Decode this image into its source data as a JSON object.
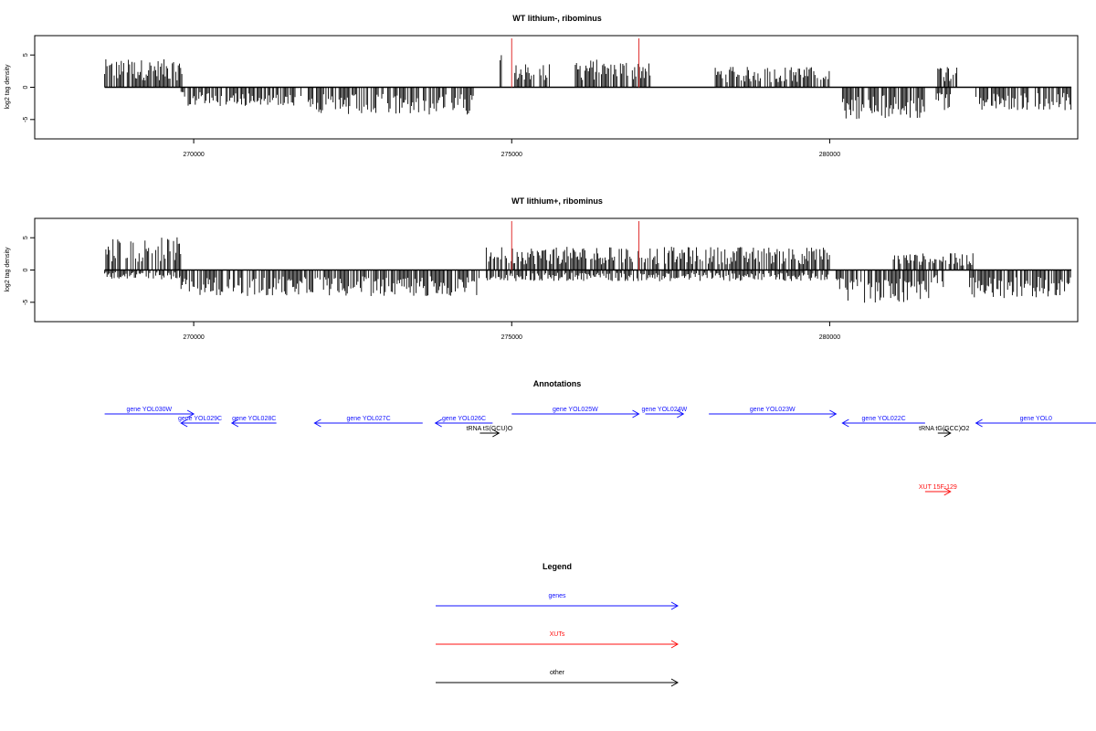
{
  "chart_data": [
    {
      "type": "bar",
      "title": "WT lithium-, ribominus",
      "xlabel": "",
      "ylabel": "log2 tag density",
      "xlim": [
        267500,
        283900
      ],
      "ylim": [
        -8,
        8
      ],
      "x_ticks": [
        270000,
        275000,
        280000
      ],
      "y_ticks": [
        -5,
        0,
        5
      ],
      "reference_lines_x": [
        275000,
        277000
      ],
      "reference_line_color": "#e03030",
      "bar_color": "#000000",
      "positive_bars": [
        {
          "x_range": [
            268600,
            269820
          ],
          "mean": 3.0
        },
        {
          "x_range": [
            274800,
            274850
          ],
          "mean": 4.5
        },
        {
          "x_range": [
            275050,
            275600
          ],
          "mean": 2.5
        },
        {
          "x_range": [
            276000,
            277200
          ],
          "mean": 3.0
        },
        {
          "x_range": [
            278200,
            280000
          ],
          "mean": 2.2
        },
        {
          "x_range": [
            281700,
            282000
          ],
          "mean": 2.5
        }
      ],
      "negative_bars": [
        {
          "x_range": [
            269800,
            271700
          ],
          "mean": -2.0
        },
        {
          "x_range": [
            271800,
            274400
          ],
          "mean": -3.0
        },
        {
          "x_range": [
            280200,
            281500
          ],
          "mean": -3.5
        },
        {
          "x_range": [
            281600,
            281900
          ],
          "mean": -2.5
        },
        {
          "x_range": [
            282300,
            283800
          ],
          "mean": -2.5
        }
      ]
    },
    {
      "type": "bar",
      "title": "WT lithium+, ribominus",
      "xlabel": "",
      "ylabel": "log2 tag density",
      "xlim": [
        267500,
        283900
      ],
      "ylim": [
        -8,
        8
      ],
      "x_ticks": [
        270000,
        275000,
        280000
      ],
      "y_ticks": [
        -5,
        0,
        5
      ],
      "reference_lines_x": [
        275000,
        277000
      ],
      "reference_line_color": "#e03030",
      "bar_color": "#000000",
      "positive_bars": [
        {
          "x_range": [
            268600,
            269800
          ],
          "mean": 3.5
        },
        {
          "x_range": [
            274600,
            280000
          ],
          "mean": 2.5
        },
        {
          "x_range": [
            281000,
            282300
          ],
          "mean": 1.8
        }
      ],
      "negative_bars": [
        {
          "x_range": [
            268600,
            269800
          ],
          "mean": -1.0
        },
        {
          "x_range": [
            269800,
            274500
          ],
          "mean": -2.8
        },
        {
          "x_range": [
            274600,
            280000
          ],
          "mean": -1.2
        },
        {
          "x_range": [
            280100,
            281600
          ],
          "mean": -3.5
        },
        {
          "x_range": [
            281600,
            281800
          ],
          "mean": -2.0
        },
        {
          "x_range": [
            282200,
            283800
          ],
          "mean": -3.0
        }
      ]
    }
  ],
  "annotations": {
    "title": "Annotations",
    "xlim": [
      267500,
      283900
    ],
    "features": [
      {
        "label": "gene YOL030W",
        "start": 268600,
        "end": 270000,
        "strand": "+",
        "row": 0,
        "color": "#1010ff"
      },
      {
        "label": "gene YOL029C",
        "start": 269800,
        "end": 270400,
        "strand": "-",
        "row": 1,
        "color": "#1010ff"
      },
      {
        "label": "gene YOL028C",
        "start": 270600,
        "end": 271300,
        "strand": "-",
        "row": 1,
        "color": "#1010ff"
      },
      {
        "label": "gene YOL027C",
        "start": 271900,
        "end": 273600,
        "strand": "-",
        "row": 1,
        "color": "#1010ff"
      },
      {
        "label": "gene YOL026C",
        "start": 273800,
        "end": 274700,
        "strand": "-",
        "row": 1,
        "color": "#1010ff"
      },
      {
        "label": "gene YOL025W",
        "start": 275000,
        "end": 277000,
        "strand": "+",
        "row": 0,
        "color": "#1010ff"
      },
      {
        "label": "gene YOL024W",
        "start": 277100,
        "end": 277700,
        "strand": "+",
        "row": 0,
        "color": "#1010ff"
      },
      {
        "label": "gene YOL023W",
        "start": 278100,
        "end": 280100,
        "strand": "+",
        "row": 0,
        "color": "#1010ff"
      },
      {
        "label": "gene YOL022C",
        "start": 280200,
        "end": 281500,
        "strand": "-",
        "row": 1,
        "color": "#1010ff"
      },
      {
        "label": "gene YOL0",
        "start": 282300,
        "end": 284200,
        "strand": "-",
        "row": 1,
        "color": "#1010ff"
      },
      {
        "label": "tRNA tS(GCU)O",
        "start": 274500,
        "end": 274800,
        "strand": "+",
        "row": 2,
        "color": "#000000"
      },
      {
        "label": "tRNA tG(GCC)O2",
        "start": 281700,
        "end": 281900,
        "strand": "+",
        "row": 2,
        "color": "#000000"
      },
      {
        "label": "XUT 15F-129",
        "start": 281500,
        "end": 281900,
        "strand": "+",
        "row": 3,
        "color": "#ff1010"
      }
    ]
  },
  "legend": {
    "title": "Legend",
    "items": [
      {
        "label": "genes",
        "color": "#1010ff"
      },
      {
        "label": "XUTs",
        "color": "#ff1010"
      },
      {
        "label": "other",
        "color": "#000000"
      }
    ]
  }
}
